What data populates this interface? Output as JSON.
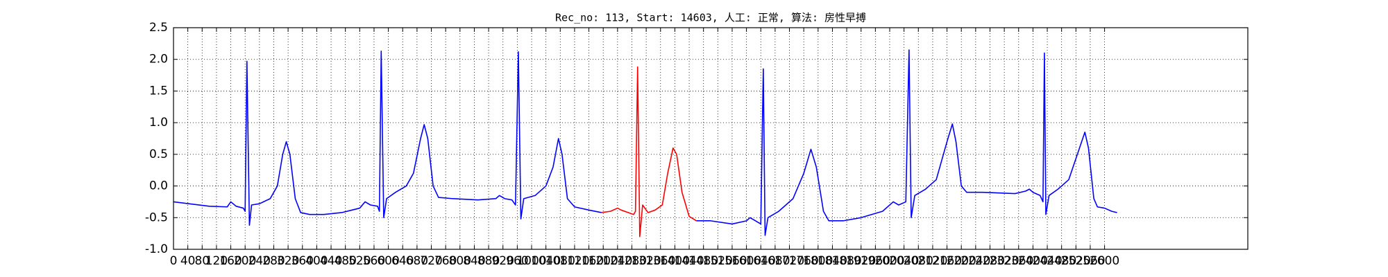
{
  "chart_data": {
    "type": "line",
    "title": "Rec_no: 113, Start: 14603, 人工: 正常, 算法: 房性早搏",
    "xlim": [
      0,
      3000
    ],
    "ylim": [
      -1,
      2.5
    ],
    "xticks": [
      0,
      40,
      80,
      120,
      160,
      200,
      240,
      280,
      320,
      360,
      400,
      440,
      480,
      520,
      560,
      600,
      640,
      680,
      720,
      760,
      800,
      840,
      880,
      920,
      960,
      1000,
      1040,
      1080,
      1120,
      1160,
      1200,
      1240,
      1280,
      1320,
      1360,
      1400,
      1440,
      1480,
      1520,
      1560,
      1600,
      1640,
      1680,
      1720,
      1760,
      1800,
      1840,
      1880,
      1920,
      1960,
      2000,
      2040,
      2080,
      2120,
      2160,
      2200,
      2240,
      2280,
      2320,
      2360,
      2400,
      2440,
      2480,
      2520,
      2560,
      2600
    ],
    "yticks": [
      {
        "value": -1,
        "label": "-1.0"
      },
      -0.5,
      {
        "value": 0,
        "label": "0.0"
      },
      0.5,
      {
        "value": 1,
        "label": "1.0"
      },
      1.5,
      {
        "value": 2,
        "label": "2.0"
      },
      2.5
    ],
    "grid": true,
    "series": [
      {
        "color": "#0000ff",
        "x": [
          0,
          100,
          150,
          160,
          175,
          195,
          200,
          205,
          212,
          218,
          240,
          270,
          290,
          305,
          315,
          325,
          340,
          355,
          380,
          420,
          470,
          520,
          535,
          550,
          570,
          575,
          580,
          587,
          595,
          620,
          650,
          670,
          690,
          700,
          710,
          725,
          740,
          780,
          850,
          900,
          910,
          925,
          945,
          955,
          963,
          970,
          978,
          1010,
          1040,
          1060,
          1075,
          1085,
          1100,
          1120,
          1160,
          1195
        ],
        "values": [
          -0.25,
          -0.32,
          -0.33,
          -0.25,
          -0.32,
          -0.35,
          -0.4,
          1.97,
          -0.62,
          -0.3,
          -0.28,
          -0.2,
          0.0,
          0.5,
          0.7,
          0.5,
          -0.2,
          -0.42,
          -0.45,
          -0.45,
          -0.42,
          -0.35,
          -0.25,
          -0.3,
          -0.32,
          -0.4,
          2.13,
          -0.5,
          -0.2,
          -0.1,
          0.0,
          0.2,
          0.75,
          0.97,
          0.75,
          0.0,
          -0.18,
          -0.2,
          -0.22,
          -0.2,
          -0.15,
          -0.2,
          -0.22,
          -0.3,
          2.12,
          -0.52,
          -0.2,
          -0.15,
          0.0,
          0.3,
          0.75,
          0.5,
          -0.2,
          -0.33,
          -0.38,
          -0.42
        ]
      },
      {
        "color": "#ff0000",
        "x": [
          1195,
          1220,
          1240,
          1250,
          1270,
          1285,
          1290,
          1296,
          1302,
          1310,
          1325,
          1345,
          1365,
          1380,
          1395,
          1405,
          1420,
          1440,
          1460
        ],
        "values": [
          -0.42,
          -0.4,
          -0.35,
          -0.38,
          -0.42,
          -0.45,
          -0.4,
          1.88,
          -0.8,
          -0.3,
          -0.42,
          -0.38,
          -0.3,
          0.2,
          0.6,
          0.5,
          -0.1,
          -0.48,
          -0.55
        ]
      },
      {
        "color": "#0000ff",
        "x": [
          1460,
          1500,
          1560,
          1600,
          1610,
          1625,
          1640,
          1647,
          1652,
          1660,
          1690,
          1730,
          1760,
          1780,
          1795,
          1815,
          1830,
          1870,
          1920,
          1980,
          2010,
          2025,
          2045,
          2054,
          2060,
          2070,
          2100,
          2130,
          2160,
          2175,
          2185,
          2200,
          2215,
          2260,
          2350,
          2380,
          2390,
          2400,
          2420,
          2428,
          2432,
          2436,
          2445,
          2470,
          2500,
          2530,
          2545,
          2555,
          2570,
          2580,
          2600,
          2620,
          2635
        ],
        "values": [
          -0.55,
          -0.55,
          -0.6,
          -0.55,
          -0.5,
          -0.55,
          -0.6,
          1.85,
          -0.78,
          -0.5,
          -0.4,
          -0.2,
          0.2,
          0.58,
          0.3,
          -0.4,
          -0.55,
          -0.55,
          -0.5,
          -0.4,
          -0.25,
          -0.3,
          -0.25,
          2.15,
          -0.5,
          -0.15,
          -0.05,
          0.1,
          0.7,
          0.98,
          0.7,
          0.0,
          -0.1,
          -0.1,
          -0.12,
          -0.08,
          -0.05,
          -0.1,
          -0.15,
          -0.25,
          2.1,
          -0.45,
          -0.15,
          -0.05,
          0.1,
          0.6,
          0.85,
          0.6,
          -0.2,
          -0.33,
          -0.35,
          -0.4,
          -0.42
        ]
      }
    ]
  }
}
